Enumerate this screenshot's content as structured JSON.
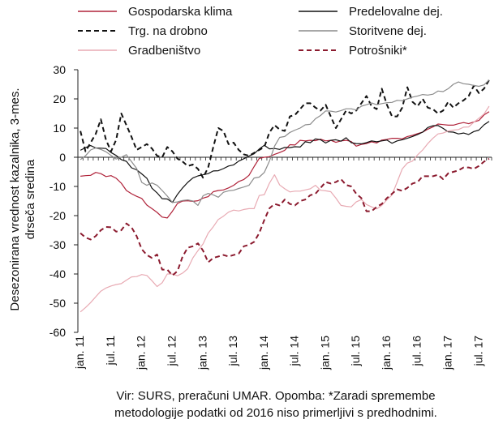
{
  "chart_data": {
    "type": "line",
    "ylabel_line1": "Desezonirana vrednost kazalnika, 3-mes.",
    "ylabel_line2": "drseča sredina",
    "ylim": [
      -60,
      30
    ],
    "yticks": [
      "30",
      "20",
      "10",
      "0",
      "-10",
      "-20",
      "-30",
      "-40",
      "-50",
      "-60"
    ],
    "x_tick_labels": [
      "jan. 11",
      "jul. 11",
      "jan. 12",
      "jul. 12",
      "jan. 13",
      "jul. 13",
      "jan. 14",
      "jul. 14",
      "jan. 15",
      "jul. 15",
      "jan. 16",
      "jul. 16",
      "jan. 17",
      "jul. 17"
    ],
    "x_start": "jan. 11",
    "x_months": 81,
    "grid": false,
    "legend_position": "top",
    "series": [
      {
        "name": "Gospodarska klima",
        "color": "#b0233a",
        "dash": "solid",
        "values": [
          -6.5,
          -6.3,
          -6.2,
          -5.2,
          -5.6,
          -6.6,
          -6.3,
          -7.2,
          -8.9,
          -11.4,
          -12.5,
          -13.4,
          -14.1,
          -16.4,
          -17.6,
          -18.9,
          -20.5,
          -20.8,
          -18.5,
          -15.8,
          -15.0,
          -14.9,
          -15.1,
          -14.9,
          -14.0,
          -13.5,
          -11.8,
          -11.4,
          -11.2,
          -10.5,
          -9.6,
          -8.3,
          -7.6,
          -6.2,
          -3.2,
          -0.4,
          0.0,
          0.2,
          1.0,
          1.6,
          2.4,
          4.3,
          4.2,
          5.8,
          5.6,
          5.8,
          5.7,
          6.2,
          5.6,
          5.8,
          5.1,
          5.6,
          5.8,
          5.4,
          3.8,
          4.4,
          4.7,
          5.3,
          4.9,
          5.9,
          6.1,
          6.5,
          6.5,
          6.3,
          7.1,
          7.5,
          8.1,
          8.6,
          9.6,
          10.4,
          11.4,
          11.2,
          11.0,
          11.0,
          11.5,
          11.9,
          11.5,
          12.1,
          12.6,
          14.5,
          15.6
        ]
      },
      {
        "name": "Predelovalne dej.",
        "color": "#111111",
        "dash": "solid",
        "values": [
          2.4,
          3.3,
          4.0,
          3.2,
          3.1,
          3.0,
          1.6,
          0.6,
          -0.8,
          -1.4,
          -3.6,
          -4.3,
          -5.7,
          -7.2,
          -10.6,
          -12.2,
          -14.2,
          -14.3,
          -15.5,
          -12.7,
          -10.5,
          -8.6,
          -7.1,
          -6.4,
          -6.0,
          -5.6,
          -4.7,
          -4.6,
          -3.9,
          -3.0,
          -2.6,
          -1.3,
          -0.5,
          0.4,
          1.2,
          2.8,
          4.1,
          2.9,
          3.0,
          2.7,
          3.4,
          3.3,
          3.6,
          3.5,
          5.3,
          5.0,
          6.3,
          6.0,
          4.9,
          5.8,
          6.0,
          5.5,
          6.7,
          5.0,
          4.7,
          4.6,
          5.0,
          5.6,
          5.3,
          5.6,
          5.9,
          4.8,
          5.6,
          6.0,
          6.5,
          7.1,
          7.8,
          8.6,
          10.2,
          10.8,
          10.9,
          9.9,
          8.7,
          8.6,
          8.0,
          8.3,
          7.8,
          8.8,
          9.3,
          11.1,
          12.3
        ]
      },
      {
        "name": "Trg. na drobno",
        "color": "#111111",
        "dash": "dashed",
        "values": [
          9.0,
          2.0,
          5.0,
          8.0,
          13.0,
          6.0,
          2.0,
          6.0,
          15.0,
          11.0,
          7.0,
          2.5,
          3.5,
          4.5,
          3.0,
          0.5,
          0.0,
          3.5,
          2.0,
          -0.5,
          -1.5,
          -3.0,
          -2.5,
          -4.0,
          -7.0,
          -3.5,
          3.5,
          10.0,
          9.0,
          4.5,
          5.0,
          2.5,
          1.0,
          0.5,
          1.5,
          2.5,
          3.5,
          8.5,
          11.0,
          9.5,
          9.0,
          14.0,
          14.5,
          16.5,
          18.5,
          18.5,
          17.0,
          16.0,
          18.0,
          14.0,
          10.0,
          13.0,
          16.0,
          15.0,
          16.0,
          18.5,
          21.0,
          17.5,
          16.5,
          23.5,
          18.0,
          14.0,
          14.0,
          17.0,
          24.0,
          19.0,
          17.5,
          20.0,
          17.0,
          16.5,
          15.0,
          16.0,
          19.0,
          17.0,
          18.5,
          19.5,
          21.0,
          24.5,
          22.0,
          23.5,
          26.5
        ]
      },
      {
        "name": "Storitvene dej.",
        "color": "#8c8c8c",
        "dash": "solid",
        "values": [
          -0.8,
          0.5,
          2.5,
          3.2,
          2.7,
          1.9,
          0.6,
          -0.6,
          0.0,
          0.9,
          -1.5,
          -3.8,
          -8.6,
          -9.6,
          -8.8,
          -9.6,
          -11.4,
          -13.3,
          -15.5,
          -15.3,
          -14.8,
          -14.6,
          -15.0,
          -16.5,
          -13.2,
          -12.4,
          -12.9,
          -13.7,
          -12.0,
          -11.5,
          -11.3,
          -10.7,
          -10.2,
          -9.6,
          -7.1,
          -6.8,
          -5.2,
          -1.3,
          3.8,
          6.8,
          7.1,
          8.5,
          9.3,
          10.0,
          11.1,
          11.3,
          13.2,
          14.3,
          15.9,
          15.8,
          15.5,
          16.0,
          16.6,
          16.6,
          16.2,
          17.5,
          18.0,
          18.6,
          18.0,
          18.4,
          18.7,
          18.8,
          19.5,
          19.4,
          20.0,
          20.6,
          21.0,
          21.5,
          21.3,
          21.6,
          22.7,
          22.5,
          23.5,
          25.0,
          25.8,
          25.2,
          25.0,
          24.6,
          24.3,
          24.8,
          26.5
        ]
      },
      {
        "name": "Gradbeništvo",
        "color": "#e8aab3",
        "dash": "solid",
        "values": [
          -53.0,
          -51.5,
          -49.8,
          -47.8,
          -45.9,
          -44.8,
          -44.1,
          -43.6,
          -43.3,
          -42.1,
          -41.0,
          -40.9,
          -40.2,
          -40.5,
          -42.3,
          -44.3,
          -43.0,
          -40.0,
          -40.0,
          -40.6,
          -39.7,
          -38.2,
          -34.5,
          -32.0,
          -29.7,
          -26.0,
          -23.8,
          -21.3,
          -20.2,
          -18.8,
          -18.1,
          -18.4,
          -17.9,
          -17.6,
          -17.6,
          -13.1,
          -12.8,
          -8.9,
          -6.0,
          -9.5,
          -10.8,
          -11.9,
          -11.6,
          -11.6,
          -11.2,
          -10.8,
          -9.6,
          -11.3,
          -11.5,
          -11.8,
          -14.0,
          -16.5,
          -16.8,
          -17.0,
          -15.3,
          -14.5,
          -16.2,
          -17.0,
          -17.7,
          -16.5,
          -14.6,
          -12.9,
          -8.5,
          -4.0,
          -2.0,
          -1.3,
          0.8,
          2.5,
          4.7,
          6.5,
          8.0,
          8.3,
          9.0,
          9.3,
          9.5,
          10.3,
          10.4,
          12.0,
          13.4,
          14.8,
          17.5
        ]
      },
      {
        "name": "Potrošniki*",
        "color": "#8b1a2e",
        "dash": "dashed",
        "values": [
          -26.0,
          -27.5,
          -28.2,
          -27.0,
          -25.0,
          -23.9,
          -24.0,
          -25.5,
          -25.0,
          -22.7,
          -24.0,
          -27.0,
          -31.5,
          -33.5,
          -34.5,
          -33.3,
          -38.5,
          -38.5,
          -40.5,
          -39.0,
          -34.0,
          -31.0,
          -30.5,
          -29.5,
          -32.0,
          -36.0,
          -34.5,
          -34.0,
          -33.5,
          -34.0,
          -33.5,
          -33.0,
          -30.5,
          -30.0,
          -29.0,
          -26.0,
          -21.5,
          -17.5,
          -16.0,
          -16.5,
          -14.5,
          -16.0,
          -16.5,
          -15.0,
          -14.5,
          -13.0,
          -12.5,
          -10.5,
          -8.5,
          -9.0,
          -8.5,
          -7.5,
          -9.5,
          -10.0,
          -12.5,
          -14.0,
          -18.5,
          -18.5,
          -17.0,
          -16.0,
          -14.0,
          -12.5,
          -11.0,
          -11.5,
          -10.5,
          -9.0,
          -8.5,
          -6.5,
          -6.5,
          -6.5,
          -6.0,
          -7.5,
          -5.5,
          -5.0,
          -4.5,
          -3.5,
          -3.5,
          -4.0,
          -3.0,
          -1.5,
          -0.5
        ]
      }
    ]
  },
  "source_line1": "Vir: SURS, preračuni UMAR. Opomba: *Zaradi spremembe",
  "source_line2": "metodologije podatki od 2016 niso primerljivi s predhodnimi."
}
